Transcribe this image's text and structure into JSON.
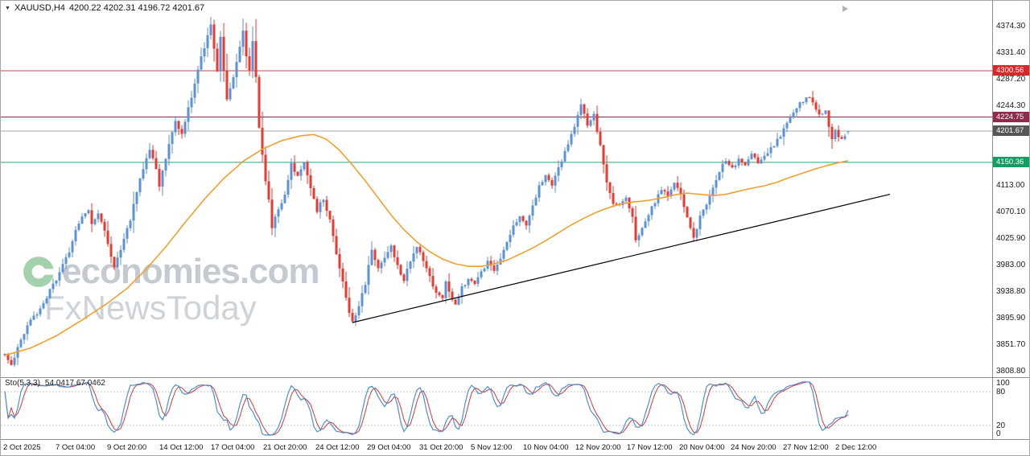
{
  "header": {
    "dropdown_icon": "▼",
    "symbol": "XAUUSD,H4",
    "ohlc": "4200.22 4202.31 4196.72 4201.67"
  },
  "watermark": {
    "brand": "economies.com",
    "sub": "FxNewsToday",
    "logo_color": "#49a45c"
  },
  "price_axis": {
    "labels": [
      {
        "text": "4374.30",
        "value": 4374.3
      },
      {
        "text": "4331.40",
        "value": 4331.4
      },
      {
        "text": "4287.20",
        "value": 4287.2
      },
      {
        "text": "4244.30",
        "value": 4244.3
      },
      {
        "text": "4113.00",
        "value": 4113.0
      },
      {
        "text": "4070.10",
        "value": 4070.1
      },
      {
        "text": "4025.90",
        "value": 4025.9
      },
      {
        "text": "3983.00",
        "value": 3983.0
      },
      {
        "text": "3938.80",
        "value": 3938.8
      },
      {
        "text": "3895.90",
        "value": 3895.9
      },
      {
        "text": "3851.70",
        "value": 3851.7
      },
      {
        "text": "3808.80",
        "value": 3808.8
      }
    ],
    "badges": [
      {
        "text": "4300.56",
        "value": 4300.56,
        "color": "#d22b2b"
      },
      {
        "text": "4224.75",
        "value": 4224.75,
        "color": "#8e2a4a"
      },
      {
        "text": "4201.67",
        "value": 4201.67,
        "color": "#565656"
      },
      {
        "text": "4150.36",
        "value": 4150.36,
        "color": "#169b62"
      }
    ]
  },
  "time_axis": {
    "labels": [
      "2 Oct 2025",
      "7 Oct 04:00",
      "9 Oct 20:00",
      "14 Oct 12:00",
      "17 Oct 04:00",
      "21 Oct 20:00",
      "24 Oct 12:00",
      "29 Oct 04:00",
      "31 Oct 20:00",
      "5 Nov 12:00",
      "10 Nov 04:00",
      "12 Nov 20:00",
      "17 Nov 12:00",
      "20 Nov 04:00",
      "24 Nov 20:00",
      "27 Nov 12:00",
      "2 Dec 12:00"
    ]
  },
  "indicator": {
    "name": "Sto(5,3,3)",
    "values_text": "54.0417 67.0462",
    "main_value": 54.0417,
    "signal_value": 67.0462,
    "scale_labels": [
      "100",
      "80",
      "20",
      "0"
    ],
    "levels": [
      80,
      20
    ],
    "colors": {
      "main": "#4f8fd0",
      "signal": "#cc3a3a",
      "level": "#c6c6c6"
    }
  },
  "chart_data": {
    "type": "candlestick",
    "symbol": "XAUUSD",
    "timeframe": "H4",
    "current_price": 4201.67,
    "ohlc_current": {
      "open": 4200.22,
      "high": 4202.31,
      "low": 4196.72,
      "close": 4201.67
    },
    "ylim": [
      3798.3,
      4415.2
    ],
    "num_candles": 263,
    "close_waypoints": [
      [
        0,
        3838
      ],
      [
        2,
        3820
      ],
      [
        5,
        3860
      ],
      [
        8,
        3890
      ],
      [
        11,
        3912
      ],
      [
        14,
        3940
      ],
      [
        17,
        3968
      ],
      [
        20,
        4005
      ],
      [
        22,
        4040
      ],
      [
        24,
        4062
      ],
      [
        26,
        4070
      ],
      [
        27,
        4046
      ],
      [
        29,
        4066
      ],
      [
        31,
        4040
      ],
      [
        33,
        3996
      ],
      [
        34,
        3978
      ],
      [
        36,
        4004
      ],
      [
        39,
        4058
      ],
      [
        42,
        4122
      ],
      [
        45,
        4170
      ],
      [
        47,
        4138
      ],
      [
        48,
        4112
      ],
      [
        50,
        4155
      ],
      [
        52,
        4200
      ],
      [
        53,
        4218
      ],
      [
        55,
        4196
      ],
      [
        57,
        4238
      ],
      [
        59,
        4278
      ],
      [
        61,
        4322
      ],
      [
        63,
        4358
      ],
      [
        64,
        4374
      ],
      [
        65,
        4338
      ],
      [
        66,
        4302
      ],
      [
        67,
        4356
      ],
      [
        68,
        4298
      ],
      [
        69,
        4252
      ],
      [
        71,
        4288
      ],
      [
        73,
        4342
      ],
      [
        74,
        4364
      ],
      [
        75,
        4322
      ],
      [
        76,
        4300
      ],
      [
        77,
        4350
      ],
      [
        78,
        4288
      ],
      [
        79,
        4210
      ],
      [
        80,
        4160
      ],
      [
        81,
        4122
      ],
      [
        82,
        4088
      ],
      [
        83,
        4046
      ],
      [
        85,
        4072
      ],
      [
        87,
        4098
      ],
      [
        89,
        4146
      ],
      [
        91,
        4128
      ],
      [
        93,
        4150
      ],
      [
        95,
        4106
      ],
      [
        97,
        4072
      ],
      [
        99,
        4092
      ],
      [
        101,
        4056
      ],
      [
        103,
        4002
      ],
      [
        105,
        3952
      ],
      [
        107,
        3906
      ],
      [
        108,
        3888
      ],
      [
        110,
        3916
      ],
      [
        112,
        3952
      ],
      [
        113,
        3984
      ],
      [
        114,
        4004
      ],
      [
        116,
        3978
      ],
      [
        118,
        3996
      ],
      [
        120,
        4012
      ],
      [
        122,
        3982
      ],
      [
        124,
        3958
      ],
      [
        126,
        3988
      ],
      [
        128,
        4010
      ],
      [
        130,
        3990
      ],
      [
        132,
        3962
      ],
      [
        134,
        3938
      ],
      [
        136,
        3926
      ],
      [
        137,
        3954
      ],
      [
        139,
        3924
      ],
      [
        140,
        3914
      ],
      [
        142,
        3944
      ],
      [
        144,
        3960
      ],
      [
        146,
        3950
      ],
      [
        148,
        3972
      ],
      [
        150,
        3986
      ],
      [
        152,
        3972
      ],
      [
        154,
        3992
      ],
      [
        156,
        4018
      ],
      [
        158,
        4044
      ],
      [
        160,
        4062
      ],
      [
        162,
        4046
      ],
      [
        164,
        4082
      ],
      [
        166,
        4110
      ],
      [
        168,
        4128
      ],
      [
        170,
        4114
      ],
      [
        172,
        4140
      ],
      [
        174,
        4166
      ],
      [
        176,
        4194
      ],
      [
        178,
        4226
      ],
      [
        179,
        4244
      ],
      [
        181,
        4212
      ],
      [
        183,
        4228
      ],
      [
        185,
        4176
      ],
      [
        187,
        4116
      ],
      [
        189,
        4082
      ],
      [
        191,
        4078
      ],
      [
        193,
        4094
      ],
      [
        195,
        4058
      ],
      [
        196,
        4022
      ],
      [
        198,
        4042
      ],
      [
        200,
        4066
      ],
      [
        202,
        4086
      ],
      [
        204,
        4106
      ],
      [
        206,
        4094
      ],
      [
        208,
        4114
      ],
      [
        210,
        4098
      ],
      [
        212,
        4062
      ],
      [
        214,
        4028
      ],
      [
        216,
        4060
      ],
      [
        218,
        4082
      ],
      [
        220,
        4110
      ],
      [
        222,
        4138
      ],
      [
        224,
        4152
      ],
      [
        226,
        4140
      ],
      [
        228,
        4156
      ],
      [
        230,
        4146
      ],
      [
        232,
        4162
      ],
      [
        234,
        4150
      ],
      [
        236,
        4164
      ],
      [
        238,
        4174
      ],
      [
        240,
        4186
      ],
      [
        242,
        4204
      ],
      [
        244,
        4222
      ],
      [
        246,
        4240
      ],
      [
        248,
        4252
      ],
      [
        250,
        4260
      ],
      [
        252,
        4240
      ],
      [
        253,
        4226
      ],
      [
        255,
        4236
      ],
      [
        256,
        4212
      ],
      [
        257,
        4186
      ],
      [
        258,
        4200
      ],
      [
        260,
        4190
      ],
      [
        262,
        4202
      ]
    ],
    "ma_waypoints": [
      [
        0,
        3834
      ],
      [
        8,
        3846
      ],
      [
        16,
        3866
      ],
      [
        24,
        3892
      ],
      [
        32,
        3920
      ],
      [
        38,
        3944
      ],
      [
        44,
        3976
      ],
      [
        50,
        4012
      ],
      [
        56,
        4052
      ],
      [
        62,
        4090
      ],
      [
        68,
        4124
      ],
      [
        74,
        4152
      ],
      [
        80,
        4172
      ],
      [
        86,
        4186
      ],
      [
        92,
        4194
      ],
      [
        96,
        4196
      ],
      [
        100,
        4188
      ],
      [
        104,
        4170
      ],
      [
        108,
        4146
      ],
      [
        112,
        4120
      ],
      [
        116,
        4092
      ],
      [
        120,
        4064
      ],
      [
        124,
        4040
      ],
      [
        128,
        4020
      ],
      [
        132,
        4004
      ],
      [
        136,
        3992
      ],
      [
        140,
        3984
      ],
      [
        144,
        3980
      ],
      [
        148,
        3980
      ],
      [
        152,
        3984
      ],
      [
        156,
        3990
      ],
      [
        160,
        4000
      ],
      [
        164,
        4010
      ],
      [
        168,
        4022
      ],
      [
        172,
        4035
      ],
      [
        176,
        4048
      ],
      [
        180,
        4059
      ],
      [
        184,
        4069
      ],
      [
        188,
        4077
      ],
      [
        192,
        4083
      ],
      [
        196,
        4086
      ],
      [
        200,
        4088
      ],
      [
        204,
        4092
      ],
      [
        208,
        4097
      ],
      [
        212,
        4100
      ],
      [
        216,
        4098
      ],
      [
        220,
        4096
      ],
      [
        224,
        4098
      ],
      [
        228,
        4103
      ],
      [
        232,
        4108
      ],
      [
        236,
        4112
      ],
      [
        240,
        4118
      ],
      [
        244,
        4126
      ],
      [
        248,
        4133
      ],
      [
        252,
        4140
      ],
      [
        256,
        4146
      ],
      [
        260,
        4151
      ],
      [
        262,
        4153
      ]
    ],
    "trendline": {
      "from": [
        108,
        3888
      ],
      "to": [
        275,
        4098
      ]
    },
    "hlines": [
      {
        "price": 4300.56,
        "color": "#c04a52"
      },
      {
        "price": 4224.75,
        "color": "#8e2a4a"
      },
      {
        "price": 4201.67,
        "color": "#a8a8a8"
      },
      {
        "price": 4150.36,
        "color": "#2aa876"
      }
    ],
    "colors": {
      "up": "#5d92d6",
      "down": "#ea3b32",
      "ma": "#f0a030",
      "trendline": "#000000"
    }
  }
}
